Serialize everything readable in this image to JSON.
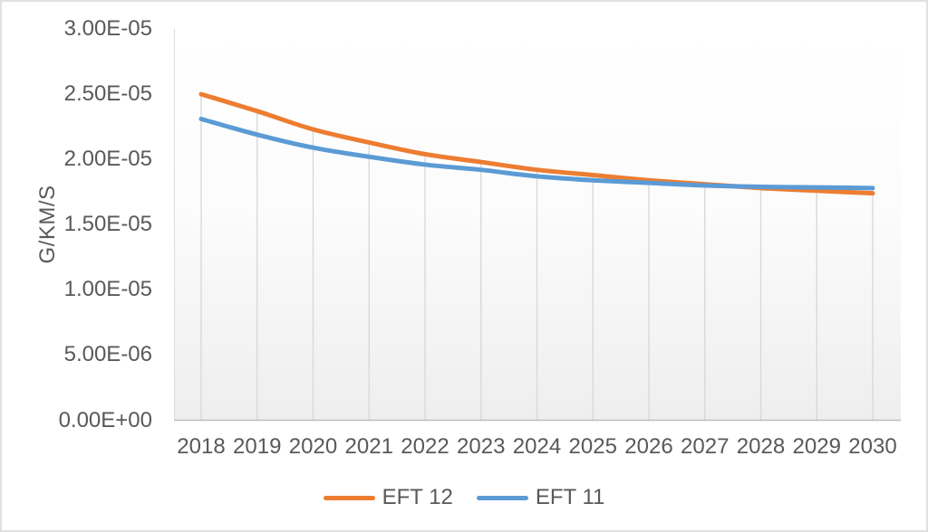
{
  "chart": {
    "axis_title_y": "G/KM/S",
    "y_tick_labels": [
      "3.00E-05",
      "2.50E-05",
      "2.00E-05",
      "1.50E-05",
      "1.00E-05",
      "5.00E-06",
      "0.00E+00"
    ],
    "x_tick_labels": [
      "2018",
      "2019",
      "2020",
      "2021",
      "2022",
      "2023",
      "2024",
      "2025",
      "2026",
      "2027",
      "2028",
      "2029",
      "2030"
    ],
    "colors": {
      "series_eft12": "#ED7D31",
      "series_eft11": "#5B9BD5",
      "text": "#595959",
      "axis_line": "#BFBFBF",
      "value_axis_line": "#DCDCDC",
      "drop_line": "#D9D9D9"
    }
  },
  "legend": {
    "items": [
      {
        "label": "EFT 12",
        "color": "#ED7D31"
      },
      {
        "label": "EFT 11",
        "color": "#5B9BD5"
      }
    ]
  },
  "chart_data": {
    "type": "line",
    "title": "",
    "xlabel": "",
    "ylabel": "G/KM/S",
    "x": [
      2018,
      2019,
      2020,
      2021,
      2022,
      2023,
      2024,
      2025,
      2026,
      2027,
      2028,
      2029,
      2030
    ],
    "series": [
      {
        "name": "EFT 12",
        "color": "#ED7D31",
        "values": [
          2.5e-05,
          2.37e-05,
          2.23e-05,
          2.13e-05,
          2.04e-05,
          1.98e-05,
          1.92e-05,
          1.88e-05,
          1.84e-05,
          1.81e-05,
          1.78e-05,
          1.76e-05,
          1.74e-05
        ]
      },
      {
        "name": "EFT 11",
        "color": "#5B9BD5",
        "values": [
          2.31e-05,
          2.19e-05,
          2.09e-05,
          2.02e-05,
          1.96e-05,
          1.92e-05,
          1.87e-05,
          1.84e-05,
          1.82e-05,
          1.8e-05,
          1.79e-05,
          1.785e-05,
          1.78e-05
        ]
      }
    ],
    "ylim": [
      0,
      3e-05
    ],
    "y_tick_step": 5e-06,
    "grid": "vertical drop lines from points to category axis, no horizontal gridlines",
    "legend_position": "bottom-center",
    "smoothed_lines": true
  }
}
